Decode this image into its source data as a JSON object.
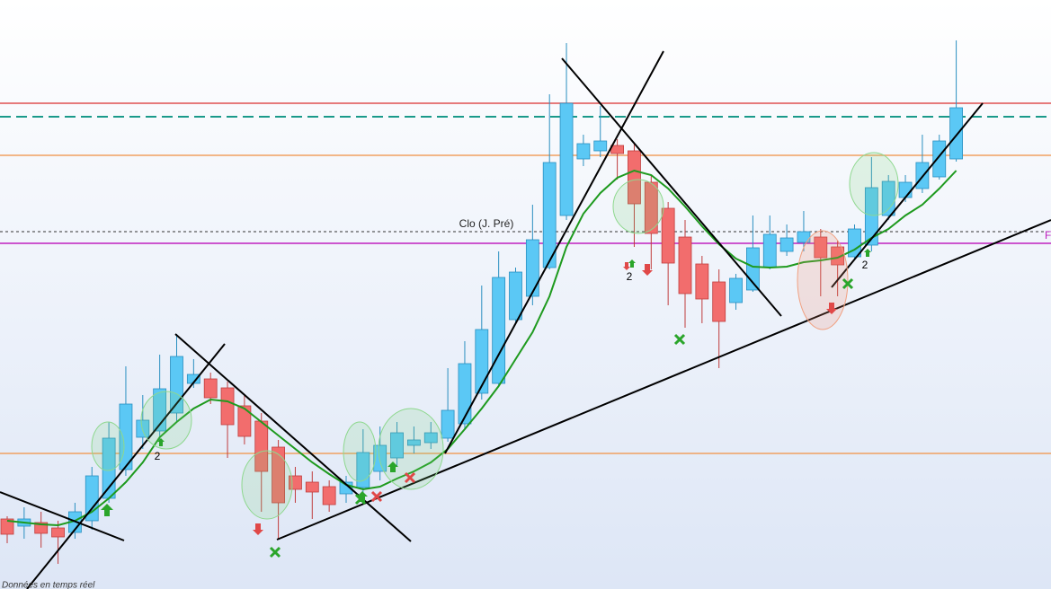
{
  "chart_data": {
    "type": "candlestick",
    "ylim": [
      0,
      656
    ],
    "up_color": "#5bc8f5",
    "down_color": "#f26d6d",
    "open": [
      78,
      70,
      74,
      68,
      63,
      76,
      101,
      133,
      169,
      176,
      196,
      229,
      234,
      224,
      204,
      187,
      158,
      126,
      119,
      114,
      106,
      113,
      131,
      146,
      160,
      163,
      168,
      184,
      218,
      229,
      300,
      326,
      358,
      416,
      479,
      488,
      494,
      488,
      453,
      424,
      392,
      362,
      342,
      319,
      333,
      358,
      376,
      386,
      392,
      381,
      370,
      383,
      416,
      436,
      446,
      459,
      479
    ],
    "high": [
      81,
      91,
      86,
      76,
      96,
      136,
      186,
      248,
      216,
      261,
      284,
      256,
      241,
      231,
      216,
      196,
      166,
      136,
      131,
      121,
      126,
      178,
      181,
      186,
      181,
      186,
      246,
      276,
      338,
      376,
      358,
      428,
      551,
      608,
      506,
      538,
      501,
      496,
      461,
      431,
      411,
      371,
      356,
      351,
      416,
      416,
      406,
      421,
      401,
      388,
      406,
      481,
      461,
      461,
      506,
      506,
      611
    ],
    "low": [
      51,
      56,
      46,
      28,
      56,
      66,
      96,
      126,
      156,
      166,
      186,
      224,
      206,
      146,
      161,
      86,
      56,
      96,
      78,
      86,
      96,
      106,
      121,
      136,
      151,
      156,
      164,
      178,
      211,
      226,
      296,
      316,
      356,
      411,
      471,
      481,
      456,
      381,
      356,
      316,
      291,
      296,
      246,
      311,
      331,
      356,
      371,
      376,
      326,
      326,
      366,
      376,
      411,
      431,
      441,
      456,
      476
    ],
    "close": [
      61,
      78,
      62,
      58,
      86,
      126,
      168,
      206,
      188,
      223,
      259,
      239,
      213,
      183,
      170,
      131,
      96,
      111,
      108,
      94,
      119,
      152,
      160,
      174,
      166,
      174,
      199,
      251,
      289,
      347,
      353,
      389,
      475,
      541,
      496,
      499,
      485,
      429,
      396,
      363,
      329,
      323,
      298,
      346,
      380,
      395,
      391,
      398,
      369,
      361,
      401,
      447,
      454,
      453,
      475,
      499,
      536
    ],
    "ma": {
      "color": "#1e9a1e",
      "values": [
        76,
        74,
        72,
        71,
        76,
        86,
        101,
        119,
        141,
        169,
        186,
        201,
        211,
        209,
        201,
        186,
        171,
        156,
        141,
        128,
        116,
        111,
        114,
        123,
        131,
        141,
        156,
        178,
        201,
        226,
        256,
        286,
        326,
        381,
        418,
        441,
        458,
        466,
        461,
        446,
        426,
        404,
        384,
        368,
        359,
        358,
        359,
        364,
        366,
        369,
        378,
        391,
        401,
        416,
        428,
        446,
        466
      ]
    },
    "levels": [
      {
        "value": 541,
        "color": "#e05050",
        "style": "solid"
      },
      {
        "value": 526,
        "color": "#1a9a8a",
        "style": "dashed"
      },
      {
        "value": 483,
        "color": "#f0a060",
        "style": "solid"
      },
      {
        "value": 398,
        "color": "#333333",
        "style": "dotted",
        "label": "Clo (J. Pré)"
      },
      {
        "value": 385,
        "color": "#c020c0",
        "style": "solid",
        "label": "F"
      },
      {
        "value": 151,
        "color": "#f0a060",
        "style": "solid"
      }
    ],
    "annotations": [
      "2",
      "2",
      "2"
    ],
    "footer": "Données en temps réel"
  }
}
